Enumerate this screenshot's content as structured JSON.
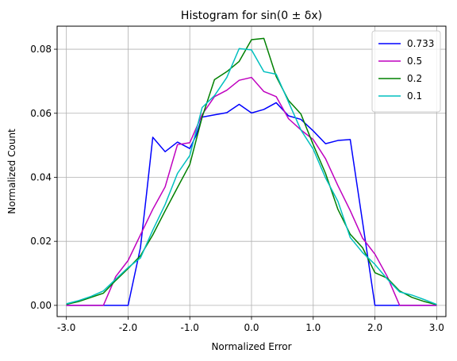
{
  "chart_data": {
    "type": "line",
    "title": "Histogram for sin(0 ± δx)",
    "xlabel": "Normalized Error",
    "ylabel": "Normalized Count",
    "xlim": [
      -3.15,
      3.15
    ],
    "ylim": [
      -0.0035,
      0.0872
    ],
    "grid": true,
    "legend_position": "top-right",
    "x_ticks": [
      -3.0,
      -2.0,
      -1.0,
      0.0,
      1.0,
      2.0,
      3.0
    ],
    "x_tick_labels": [
      "-3.0",
      "-2.0",
      "-1.0",
      "0.0",
      "1.0",
      "2.0",
      "3.0"
    ],
    "y_ticks": [
      0.0,
      0.02,
      0.04,
      0.06,
      0.08
    ],
    "y_tick_labels": [
      "0.00",
      "0.02",
      "0.04",
      "0.06",
      "0.08"
    ],
    "series": [
      {
        "name": "0.733",
        "color": "#0000ff",
        "points": [
          [
            -3.0,
            0.0
          ],
          [
            -2.8,
            0.0
          ],
          [
            -2.6,
            0.0
          ],
          [
            -2.4,
            0.0
          ],
          [
            -2.2,
            0.0
          ],
          [
            -2.0,
            0.0
          ],
          [
            -1.8,
            0.018
          ],
          [
            -1.7,
            0.035
          ],
          [
            -1.6,
            0.0525
          ],
          [
            -1.4,
            0.048
          ],
          [
            -1.2,
            0.051
          ],
          [
            -1.0,
            0.049
          ],
          [
            -0.9,
            0.053
          ],
          [
            -0.8,
            0.0588
          ],
          [
            -0.6,
            0.0595
          ],
          [
            -0.4,
            0.0602
          ],
          [
            -0.2,
            0.0628
          ],
          [
            0.0,
            0.0601
          ],
          [
            0.2,
            0.0612
          ],
          [
            0.4,
            0.0633
          ],
          [
            0.6,
            0.0592
          ],
          [
            0.8,
            0.0581
          ],
          [
            1.0,
            0.0545
          ],
          [
            1.2,
            0.0505
          ],
          [
            1.4,
            0.0515
          ],
          [
            1.6,
            0.0518
          ],
          [
            1.8,
            0.026
          ],
          [
            2.0,
            0.0
          ],
          [
            2.2,
            0.0
          ],
          [
            2.4,
            0.0
          ],
          [
            2.6,
            0.0
          ],
          [
            2.8,
            0.0
          ],
          [
            3.0,
            0.0
          ]
        ]
      },
      {
        "name": "0.5",
        "color": "#bf00bf",
        "points": [
          [
            -3.0,
            0.0
          ],
          [
            -2.8,
            0.0
          ],
          [
            -2.6,
            0.0
          ],
          [
            -2.4,
            0.0
          ],
          [
            -2.2,
            0.009
          ],
          [
            -2.0,
            0.014
          ],
          [
            -1.8,
            0.022
          ],
          [
            -1.6,
            0.03
          ],
          [
            -1.4,
            0.037
          ],
          [
            -1.2,
            0.0502
          ],
          [
            -1.0,
            0.0508
          ],
          [
            -0.8,
            0.0596
          ],
          [
            -0.6,
            0.0652
          ],
          [
            -0.4,
            0.0672
          ],
          [
            -0.2,
            0.0703
          ],
          [
            0.0,
            0.0712
          ],
          [
            0.2,
            0.0668
          ],
          [
            0.4,
            0.0652
          ],
          [
            0.6,
            0.0583
          ],
          [
            0.8,
            0.0548
          ],
          [
            1.0,
            0.0518
          ],
          [
            1.2,
            0.0458
          ],
          [
            1.4,
            0.0374
          ],
          [
            1.6,
            0.0296
          ],
          [
            1.8,
            0.021
          ],
          [
            2.0,
            0.016
          ],
          [
            2.2,
            0.009
          ],
          [
            2.4,
            0.0
          ],
          [
            2.6,
            0.0
          ],
          [
            2.8,
            0.0
          ],
          [
            3.0,
            0.0
          ]
        ]
      },
      {
        "name": "0.2",
        "color": "#008000",
        "points": [
          [
            -3.0,
            0.0003
          ],
          [
            -2.8,
            0.0012
          ],
          [
            -2.6,
            0.0025
          ],
          [
            -2.4,
            0.0038
          ],
          [
            -2.2,
            0.0078
          ],
          [
            -2.0,
            0.0115
          ],
          [
            -1.8,
            0.0155
          ],
          [
            -1.6,
            0.022
          ],
          [
            -1.4,
            0.0295
          ],
          [
            -1.2,
            0.0368
          ],
          [
            -1.0,
            0.044
          ],
          [
            -0.8,
            0.0588
          ],
          [
            -0.6,
            0.0705
          ],
          [
            -0.4,
            0.073
          ],
          [
            -0.2,
            0.0762
          ],
          [
            0.0,
            0.083
          ],
          [
            0.2,
            0.0834
          ],
          [
            0.4,
            0.0715
          ],
          [
            0.6,
            0.064
          ],
          [
            0.8,
            0.0598
          ],
          [
            1.0,
            0.0502
          ],
          [
            1.2,
            0.0412
          ],
          [
            1.4,
            0.03
          ],
          [
            1.6,
            0.0222
          ],
          [
            1.8,
            0.018
          ],
          [
            2.0,
            0.0102
          ],
          [
            2.2,
            0.0085
          ],
          [
            2.4,
            0.0045
          ],
          [
            2.6,
            0.0025
          ],
          [
            2.8,
            0.0012
          ],
          [
            3.0,
            0.0002
          ]
        ]
      },
      {
        "name": "0.1",
        "color": "#00bfbf",
        "points": [
          [
            -3.0,
            0.0005
          ],
          [
            -2.8,
            0.0015
          ],
          [
            -2.6,
            0.0028
          ],
          [
            -2.4,
            0.0045
          ],
          [
            -2.2,
            0.0082
          ],
          [
            -2.0,
            0.0118
          ],
          [
            -1.8,
            0.0148
          ],
          [
            -1.6,
            0.0235
          ],
          [
            -1.4,
            0.0315
          ],
          [
            -1.2,
            0.0412
          ],
          [
            -1.0,
            0.0468
          ],
          [
            -0.8,
            0.0618
          ],
          [
            -0.6,
            0.0655
          ],
          [
            -0.4,
            0.0712
          ],
          [
            -0.2,
            0.0802
          ],
          [
            0.0,
            0.0798
          ],
          [
            0.2,
            0.073
          ],
          [
            0.4,
            0.0722
          ],
          [
            0.6,
            0.0635
          ],
          [
            0.8,
            0.0548
          ],
          [
            1.0,
            0.0488
          ],
          [
            1.2,
            0.0398
          ],
          [
            1.4,
            0.0325
          ],
          [
            1.6,
            0.0212
          ],
          [
            1.8,
            0.0165
          ],
          [
            2.0,
            0.0128
          ],
          [
            2.2,
            0.0082
          ],
          [
            2.4,
            0.0042
          ],
          [
            2.6,
            0.0032
          ],
          [
            2.8,
            0.0018
          ],
          [
            3.0,
            0.0003
          ]
        ]
      }
    ]
  }
}
